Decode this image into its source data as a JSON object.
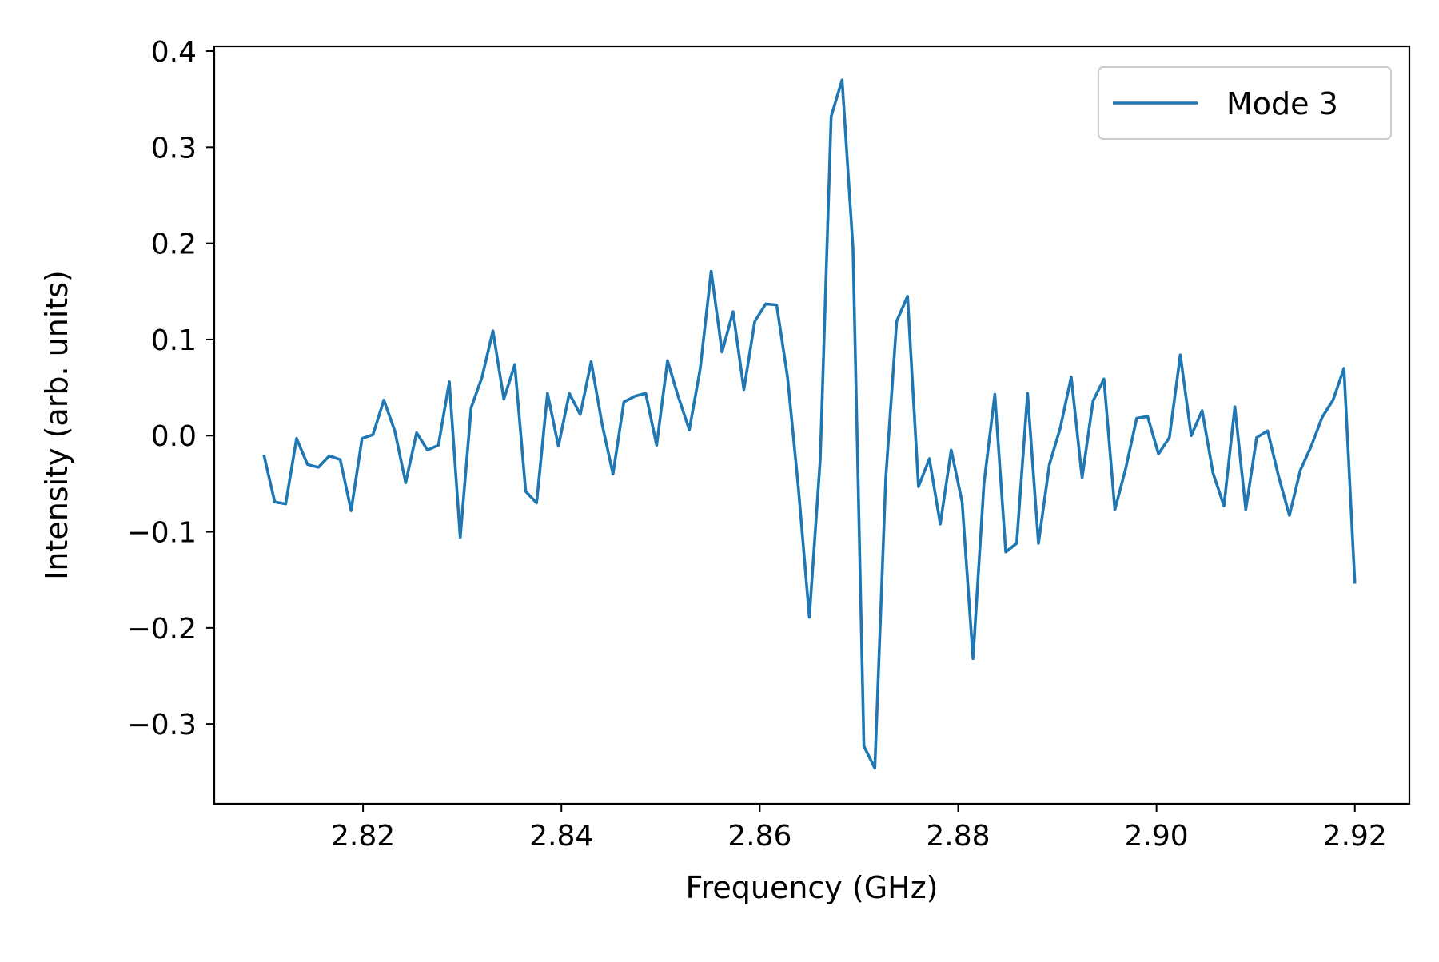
{
  "chart_data": {
    "type": "line",
    "title": "",
    "xlabel": "Frequency (GHz)",
    "ylabel": "Intensity (arb. units)",
    "xlim": [
      2.805,
      2.9255
    ],
    "ylim": [
      -0.383,
      0.405
    ],
    "xticks": [
      2.82,
      2.84,
      2.86,
      2.88,
      2.9,
      2.92
    ],
    "xtick_labels": [
      "2.82",
      "2.84",
      "2.86",
      "2.88",
      "2.90",
      "2.92"
    ],
    "yticks": [
      0.4,
      0.3,
      0.2,
      0.1,
      0.0,
      -0.1,
      -0.2,
      -0.3
    ],
    "ytick_labels": [
      "0.4",
      "0.3",
      "0.2",
      "0.1",
      "0.0",
      "−0.1",
      "−0.2",
      "−0.3"
    ],
    "grid": false,
    "legend": {
      "position": "top-right",
      "entries": [
        "Mode 3"
      ]
    },
    "series": [
      {
        "name": "Mode 3",
        "color": "#1f77b4",
        "x": [
          2.81,
          2.8111,
          2.8122,
          2.8133,
          2.8144,
          2.8155,
          2.8166,
          2.8177,
          2.8188,
          2.8199,
          2.821,
          2.8221,
          2.8232,
          2.8243,
          2.8254,
          2.8265,
          2.8276,
          2.8287,
          2.8298,
          2.8309,
          2.832,
          2.8331,
          2.8342,
          2.8353,
          2.8364,
          2.8375,
          2.8386,
          2.8397,
          2.8408,
          2.8419,
          2.843,
          2.8441,
          2.8452,
          2.8463,
          2.8474,
          2.8485,
          2.8496,
          2.8507,
          2.8518,
          2.8529,
          2.854,
          2.8551,
          2.8562,
          2.8573,
          2.8584,
          2.8595,
          2.8606,
          2.8617,
          2.8628,
          2.8639,
          2.865,
          2.8661,
          2.8672,
          2.8683,
          2.8694,
          2.8705,
          2.8716,
          2.8727,
          2.8738,
          2.8749,
          2.876,
          2.8771,
          2.8782,
          2.8793,
          2.8804,
          2.8815,
          2.8826,
          2.8837,
          2.8848,
          2.8859,
          2.887,
          2.8881,
          2.8892,
          2.8903,
          2.8914,
          2.8925,
          2.8936,
          2.8947,
          2.8958,
          2.8969,
          2.898,
          2.8991,
          2.9002,
          2.9013,
          2.9024,
          2.9035,
          2.9046,
          2.9057,
          2.9068,
          2.9079,
          2.909,
          2.9101,
          2.9112,
          2.9123,
          2.9134,
          2.9145,
          2.9156,
          2.9167,
          2.9178,
          2.9189,
          2.92
        ],
        "y": [
          -0.02,
          -0.069,
          -0.071,
          -0.003,
          -0.03,
          -0.033,
          -0.021,
          -0.025,
          -0.078,
          -0.003,
          0.001,
          0.037,
          0.005,
          -0.049,
          0.003,
          -0.015,
          -0.01,
          0.056,
          -0.106,
          0.029,
          0.061,
          0.109,
          0.038,
          0.074,
          -0.058,
          -0.07,
          0.044,
          -0.011,
          0.044,
          0.022,
          0.077,
          0.012,
          -0.04,
          0.035,
          0.041,
          0.044,
          -0.01,
          0.078,
          0.04,
          0.006,
          0.07,
          0.171,
          0.087,
          0.129,
          0.048,
          0.119,
          0.137,
          0.136,
          0.061,
          -0.055,
          -0.189,
          -0.024,
          0.332,
          0.37,
          0.195,
          -0.323,
          -0.346,
          -0.045,
          0.119,
          0.145,
          -0.053,
          -0.024,
          -0.092,
          -0.015,
          -0.069,
          -0.232,
          -0.05,
          0.043,
          -0.121,
          -0.112,
          0.044,
          -0.112,
          -0.03,
          0.008,
          0.061,
          -0.044,
          0.036,
          0.059,
          -0.077,
          -0.034,
          0.018,
          0.02,
          -0.019,
          -0.002,
          0.084,
          0.0,
          0.026,
          -0.039,
          -0.073,
          0.03,
          -0.077,
          -0.002,
          0.005,
          -0.042,
          -0.083,
          -0.036,
          -0.011,
          0.019,
          0.037,
          0.07,
          -0.154
        ]
      }
    ]
  }
}
